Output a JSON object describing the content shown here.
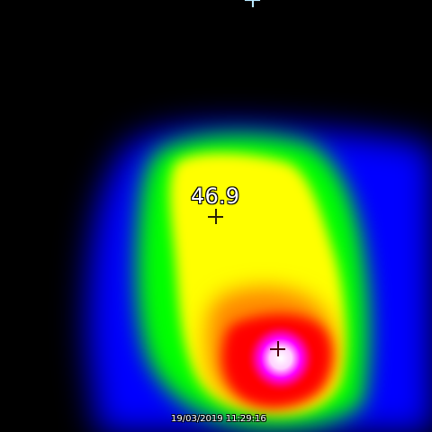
{
  "thermal_view": {
    "spot_temperature": "46.9",
    "timestamp": "19/03/2019 11:29:16"
  },
  "icons": {
    "crosshair": "crosshair-icon"
  },
  "colors": {
    "background": "#000000",
    "blue": "#0000ff",
    "green": "#00ff00",
    "yellow": "#ffff00",
    "red": "#ff0000",
    "magenta": "#ff00ff",
    "white": "#ffffff"
  }
}
